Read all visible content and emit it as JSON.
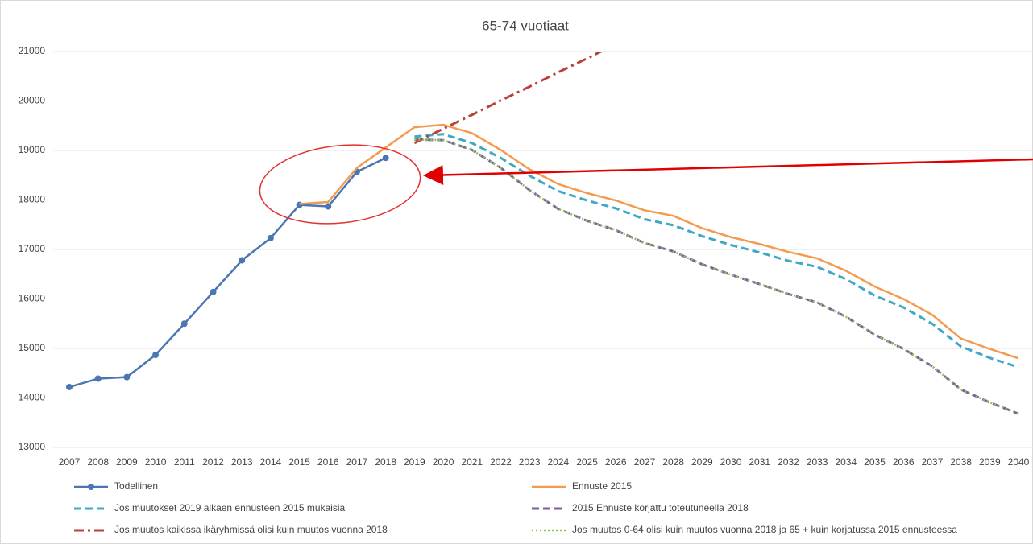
{
  "chart_data": {
    "type": "line",
    "title": "65-74 vuotiaat",
    "categories": [
      "2007",
      "2008",
      "2009",
      "2010",
      "2011",
      "2012",
      "2013",
      "2014",
      "2015",
      "2016",
      "2017",
      "2018",
      "2019",
      "2020",
      "2021",
      "2022",
      "2023",
      "2024",
      "2025",
      "2026",
      "2027",
      "2028",
      "2029",
      "2030",
      "2031",
      "2032",
      "2033",
      "2034",
      "2035",
      "2036",
      "2037",
      "2038",
      "2039",
      "2040"
    ],
    "ylim": [
      13000,
      21000
    ],
    "yticks": [
      13000,
      14000,
      15000,
      16000,
      17000,
      18000,
      19000,
      20000,
      21000
    ],
    "grid": true,
    "series": [
      {
        "name": "Todellinen",
        "color": "#4a76b3",
        "line_style": "solid",
        "marker": "circle",
        "values": [
          14220,
          14390,
          14420,
          14870,
          15500,
          16140,
          16780,
          17230,
          17900,
          17870,
          18570,
          18850,
          null,
          null,
          null,
          null,
          null,
          null,
          null,
          null,
          null,
          null,
          null,
          null,
          null,
          null,
          null,
          null,
          null,
          null,
          null,
          null,
          null,
          null
        ]
      },
      {
        "name": "Ennuste 2015",
        "color": "#f39b4f",
        "line_style": "solid",
        "values": [
          null,
          null,
          null,
          null,
          null,
          null,
          null,
          null,
          17920,
          17960,
          18650,
          19060,
          19470,
          19520,
          19350,
          19010,
          18620,
          18320,
          18140,
          17990,
          17790,
          17680,
          17430,
          17250,
          17110,
          16950,
          16820,
          16570,
          16250,
          16000,
          15680,
          15200,
          14990,
          14800
        ]
      },
      {
        "name": "Jos muutokset 2019 alkaen ennusteen 2015 mukaisia",
        "color": "#3fa9c4",
        "line_style": "dashed",
        "values": [
          null,
          null,
          null,
          null,
          null,
          null,
          null,
          null,
          null,
          null,
          null,
          null,
          19280,
          19330,
          19150,
          18850,
          18490,
          18180,
          17990,
          17830,
          17610,
          17490,
          17270,
          17090,
          16940,
          16770,
          16650,
          16400,
          16070,
          15830,
          15500,
          15040,
          14810,
          14620
        ]
      },
      {
        "name": "2015 Ennuste korjattu toteutuneella 2018",
        "color": "#7b5fa8",
        "line_style": "dashed",
        "values": [
          null,
          null,
          null,
          null,
          null,
          null,
          null,
          null,
          null,
          null,
          null,
          null,
          19220,
          19210,
          19010,
          18650,
          18200,
          17820,
          17580,
          17390,
          17130,
          16960,
          16700,
          16490,
          16300,
          16100,
          15930,
          15640,
          15280,
          14990,
          14640,
          14170,
          13910,
          13680
        ]
      },
      {
        "name": "Jos muutos kaikissa ikäryhmissä olisi kuin muutos vuonna 2018",
        "color": "#b9413c",
        "line_style": "dashdot",
        "values": [
          null,
          null,
          null,
          null,
          null,
          null,
          null,
          null,
          null,
          null,
          null,
          null,
          19150,
          19440,
          19720,
          20010,
          20290,
          20580,
          20860,
          21150,
          null,
          null,
          null,
          null,
          null,
          null,
          null,
          null,
          null,
          null,
          null,
          null,
          null,
          null
        ]
      },
      {
        "name": "Jos muutos 0-64 olisi kuin muutos vuonna 2018 ja 65 + kuin korjatussa 2015 ennusteessa",
        "color": "#8fc45a",
        "line_style": "dotted",
        "values": [
          null,
          null,
          null,
          null,
          null,
          null,
          null,
          null,
          null,
          null,
          null,
          null,
          19220,
          19210,
          19010,
          18650,
          18200,
          17820,
          17580,
          17390,
          17130,
          16960,
          16700,
          16490,
          16300,
          16100,
          15930,
          15640,
          15280,
          14990,
          14640,
          14170,
          13910,
          13680
        ]
      }
    ]
  }
}
